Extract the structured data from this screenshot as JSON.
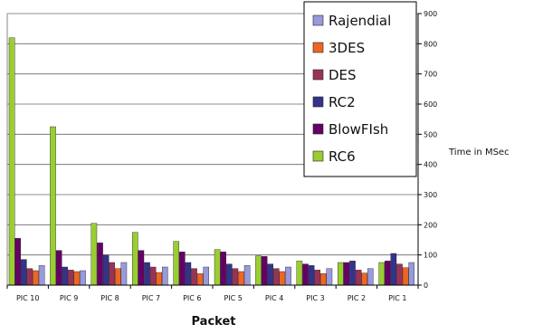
{
  "chart_data": {
    "type": "bar",
    "xlabel": "Packet",
    "ylabel": "Time in MSec",
    "ylim": [
      0,
      900
    ],
    "yticks": [
      0,
      100,
      200,
      300,
      400,
      500,
      600,
      700,
      800,
      900
    ],
    "y_axis_side": "right",
    "grid": true,
    "legend_position": "top-right",
    "categories": [
      "PIC 10",
      "PIC 9",
      "PIC 8",
      "PIC 7",
      "PIC 6",
      "PIC 5",
      "PIC 4",
      "PIC 3",
      "PIC 2",
      "PIC 1"
    ],
    "series": [
      {
        "name": "RC6",
        "color": "#9acd32",
        "values": [
          820,
          525,
          205,
          175,
          145,
          118,
          97,
          80,
          75,
          75
        ]
      },
      {
        "name": "BlowFish",
        "color": "#660066",
        "values": [
          155,
          115,
          140,
          115,
          110,
          110,
          95,
          70,
          75,
          80
        ]
      },
      {
        "name": "RC2",
        "color": "#33338a",
        "values": [
          85,
          60,
          100,
          75,
          75,
          70,
          70,
          65,
          80,
          105
        ]
      },
      {
        "name": "DES",
        "color": "#993355",
        "values": [
          55,
          50,
          75,
          60,
          55,
          55,
          55,
          50,
          50,
          70
        ]
      },
      {
        "name": "3DES",
        "color": "#ee6622",
        "values": [
          48,
          45,
          55,
          42,
          38,
          45,
          45,
          38,
          40,
          58
        ]
      },
      {
        "name": "Rajendial",
        "color": "#9999dd",
        "values": [
          65,
          48,
          75,
          60,
          60,
          65,
          60,
          55,
          55,
          75
        ]
      }
    ],
    "legend_order": [
      "Rajendial",
      "3DES",
      "DES",
      "RC2",
      "BlowFish",
      "RC6"
    ],
    "legend_labels": {
      "Rajendial": "Rajendial",
      "3DES": "3DES",
      "DES": "DES",
      "RC2": "RC2",
      "BlowFish": "BlowFIsh",
      "RC6": "RC6"
    }
  }
}
